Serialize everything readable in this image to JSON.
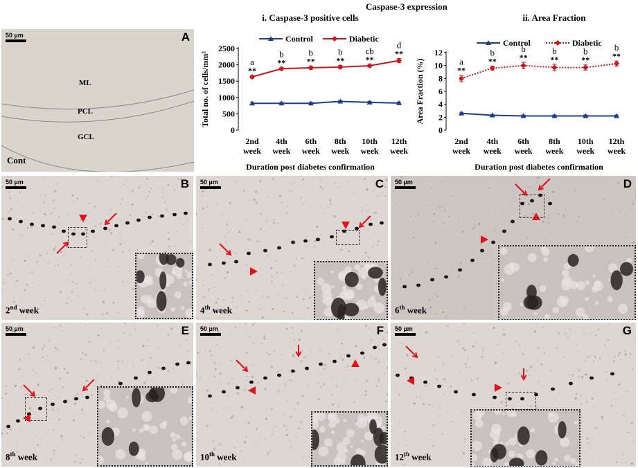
{
  "figure_title": "Caspase-3 expression",
  "panels": {
    "A": {
      "letter": "A",
      "scale": "50 µm",
      "label": "Cont",
      "layers": [
        "ML",
        "PCL",
        "GCL"
      ]
    },
    "B": {
      "letter": "B",
      "scale": "50 µm",
      "num": "2",
      "sup": "nd",
      "suffix": " week"
    },
    "C": {
      "letter": "C",
      "scale": "50 µm",
      "num": "4",
      "sup": "th",
      "suffix": " week"
    },
    "D": {
      "letter": "D",
      "scale": "50 µm",
      "num": "6",
      "sup": "th",
      "suffix": " week"
    },
    "E": {
      "letter": "E",
      "scale": "50 µm",
      "num": "8",
      "sup": "th",
      "suffix": " week"
    },
    "F": {
      "letter": "F",
      "scale": "50 µm",
      "num": "10",
      "sup": "th",
      "suffix": " week"
    },
    "G": {
      "letter": "G",
      "scale": "50 µm",
      "num": "12",
      "sup": "th",
      "suffix": " week"
    }
  },
  "colors": {
    "control": "#1f3c88",
    "diabetic": "#c8161d",
    "arrow": "#e0121a"
  },
  "chart_data": [
    {
      "type": "line",
      "title": "i. Caspase-3 positive cells",
      "xlabel": "Duration  post diabetes  confirmation",
      "ylabel": "Total  no. of cells/mm²",
      "categories": [
        [
          "2nd",
          "week"
        ],
        [
          "4th",
          "week"
        ],
        [
          "6th",
          "week"
        ],
        [
          "8th",
          "week"
        ],
        [
          "10th",
          "week"
        ],
        [
          "12th",
          "week"
        ]
      ],
      "ylim": [
        0,
        2500
      ],
      "yticks": [
        0,
        500,
        1000,
        1500,
        2000,
        2500
      ],
      "legend_position": "top",
      "series": [
        {
          "name": "Control",
          "values": [
            820,
            820,
            820,
            880,
            850,
            830
          ],
          "errors": [
            30,
            30,
            30,
            30,
            30,
            30
          ],
          "style": "solid",
          "marker": "triangle"
        },
        {
          "name": "Diabetic",
          "values": [
            1630,
            1880,
            1910,
            1930,
            1970,
            2130
          ],
          "errors": [
            40,
            40,
            50,
            50,
            40,
            60
          ],
          "style": "solid",
          "marker": "diamond"
        }
      ],
      "annotations": {
        "letters": [
          "a",
          "b",
          "b",
          "b",
          "cb",
          "d"
        ],
        "stars": "**"
      }
    },
    {
      "type": "line",
      "title": "ii. Area Fraction",
      "xlabel": "Duration  post diabetes  confirmation",
      "ylabel": "Area Fraction  (%)",
      "categories": [
        [
          "2nd",
          "week"
        ],
        [
          "4th",
          "week"
        ],
        [
          "6th",
          "week"
        ],
        [
          "8th",
          "week"
        ],
        [
          "10th",
          "week"
        ],
        [
          "12th",
          "week"
        ]
      ],
      "ylim": [
        0,
        12
      ],
      "yticks": [
        0,
        2,
        4,
        6,
        8,
        10,
        12
      ],
      "legend_position": "top",
      "series": [
        {
          "name": "Control",
          "values": [
            2.6,
            2.3,
            2.2,
            2.2,
            2.2,
            2.2
          ],
          "errors": [
            0.15,
            0.15,
            0.15,
            0.15,
            0.15,
            0.15
          ],
          "style": "solid",
          "marker": "triangle"
        },
        {
          "name": "Diabetic",
          "values": [
            8.0,
            9.6,
            10.0,
            9.7,
            9.7,
            10.3
          ],
          "errors": [
            0.5,
            0.3,
            0.5,
            0.5,
            0.4,
            0.4
          ],
          "style": "dotted",
          "marker": "diamond"
        }
      ],
      "annotations": {
        "letters": [
          "a",
          "b",
          "b",
          "b",
          "b",
          "b"
        ],
        "stars": "**"
      }
    }
  ]
}
